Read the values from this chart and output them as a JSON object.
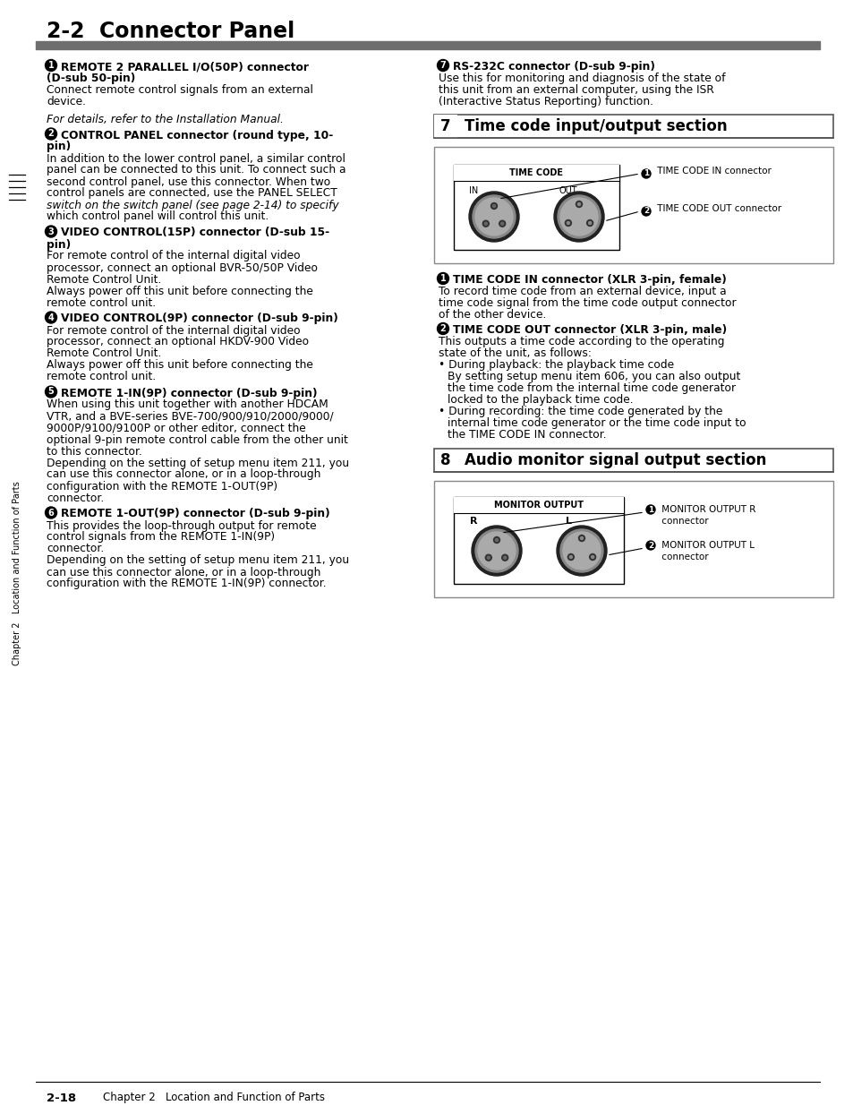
{
  "title": "2-2  Connector Panel",
  "bg_color": "#ffffff",
  "header_bar_color": "#6e6e6e",
  "footer_text_left": "2-18",
  "footer_text_right": "Chapter 2   Location and Function of Parts",
  "sidebar_text": "Chapter 2   Location and Function of Parts",
  "left_sections": [
    {
      "num": "1",
      "bold_title": "REMOTE 2 PARALLEL I/O(50P) connector\n(D-sub 50-pin)",
      "body": "Connect remote control signals from an external\ndevice.\n\n<i>For details, refer to the Installation Manual.</i>"
    },
    {
      "num": "2",
      "bold_title": "CONTROL PANEL connector (round type, 10-\npin)",
      "body": "In addition to the lower control panel, a similar control\npanel can be connected to this unit. To connect such a\nsecond control panel, use this connector. When two\ncontrol panels are connected, use the PANEL SELECT\nswitch on the switch panel <i>(see page 2-14)</i> to specify\nwhich control panel will control this unit."
    },
    {
      "num": "3",
      "bold_title": "VIDEO CONTROL(15P) connector (D-sub 15-\npin)",
      "body": "For remote control of the internal digital video\nprocessor, connect an optional BVR-50/50P Video\nRemote Control Unit.\nAlways power off this unit before connecting the\nremote control unit."
    },
    {
      "num": "4",
      "bold_title": "VIDEO CONTROL(9P) connector (D-sub 9-pin)",
      "body": "For remote control of the internal digital video\nprocessor, connect an optional HKDV-900 Video\nRemote Control Unit.\nAlways power off this unit before connecting the\nremote control unit."
    },
    {
      "num": "5",
      "bold_title": "REMOTE 1-IN(9P) connector (D-sub 9-pin)",
      "body": "When using this unit together with another HDCAM\nVTR, and a BVE-series BVE-700/900/910/2000/9000/\n9000P/9100/9100P or other editor, connect the\noptional 9-pin remote control cable from the other unit\nto this connector.\nDepending on the setting of setup menu item 211, you\ncan use this connector alone, or in a loop-through\nconfiguration with the REMOTE 1-OUT(9P)\nconnector."
    },
    {
      "num": "6",
      "bold_title": "REMOTE 1-OUT(9P) connector (D-sub 9-pin)",
      "body": "This provides the loop-through output for remote\ncontrol signals from the REMOTE 1-IN(9P)\nconnector.\nDepending on the setting of setup menu item 211, you\ncan use this connector alone, or in a loop-through\nconfiguration with the REMOTE 1-IN(9P) connector."
    }
  ],
  "right_top": {
    "num": "7",
    "bold_title": "RS-232C connector (D-sub 9-pin)",
    "body": "Use this for monitoring and diagnosis of the state of\nthis unit from an external computer, using the ISR\n(Interactive Status Reporting) function."
  },
  "section7": {
    "box_num": "7",
    "title": "Time code input/output section"
  },
  "section8": {
    "box_num": "8",
    "title": "Audio monitor signal output section"
  },
  "timecode_items": [
    {
      "num": "1",
      "bold_title": "TIME CODE IN connector (XLR 3-pin, female)",
      "body": "To record time code from an external device, input a\ntime code signal from the time code output connector\nof the other device."
    },
    {
      "num": "2",
      "bold_title": "TIME CODE OUT connector (XLR 3-pin, male)",
      "body": "This outputs a time code according to the operating\nstate of the unit, as follows:\n• During playback: the playback time code\n  By setting setup menu item 606, you can also output\n  the time code from the internal time code generator\n  locked to the playback time code.\n• During recording: the time code generated by the\n  internal time code generator or the time code input to\n  the TIME CODE IN connector."
    }
  ]
}
